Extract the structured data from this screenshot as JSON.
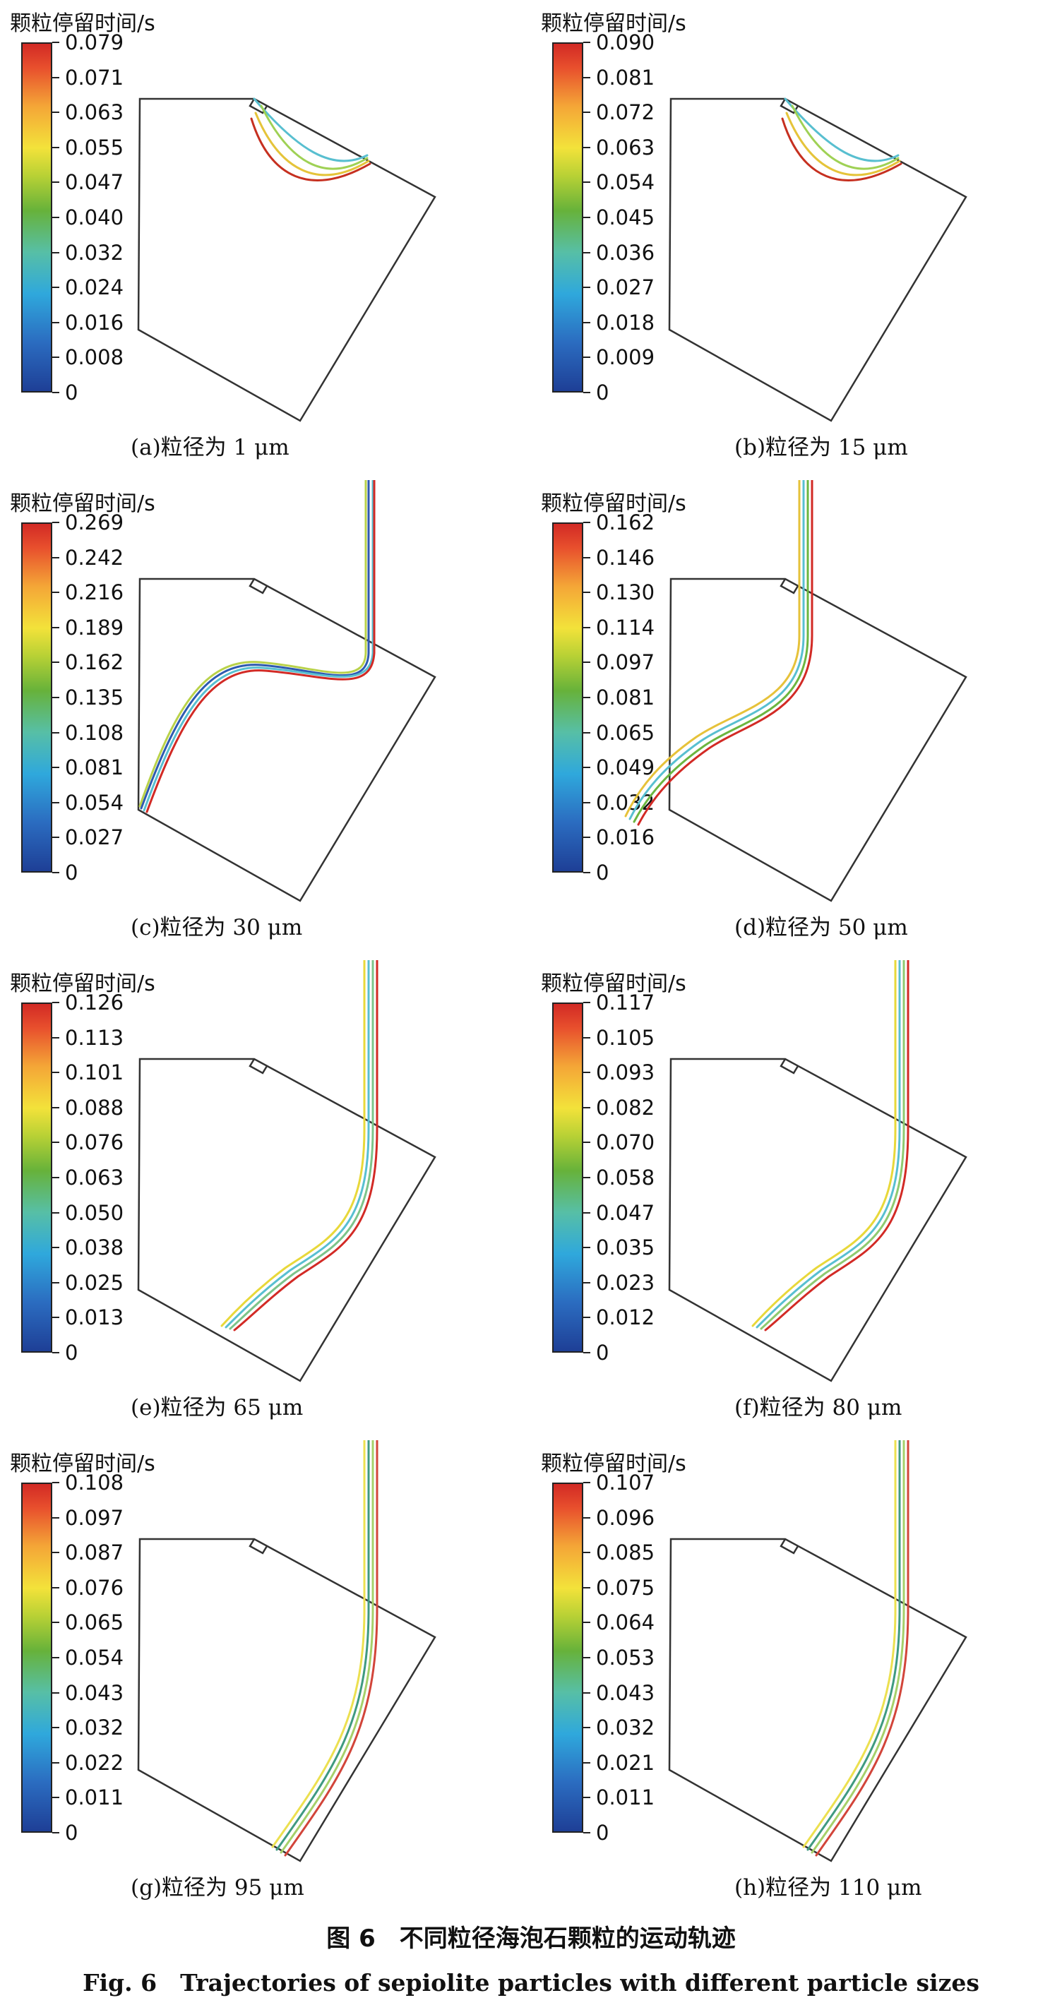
{
  "figure": {
    "title_cn": "图 6　不同粒径海泡石颗粒的运动轨迹",
    "title_en": "Fig. 6　Trajectories of sepiolite particles with different particle sizes"
  },
  "colormap": [
    "#1e3f96",
    "#2b6cc0",
    "#2fa8dc",
    "#57bfa6",
    "#67b23a",
    "#b8d135",
    "#f3e23a",
    "#f4a637",
    "#e8502d",
    "#d22a25"
  ],
  "panels": [
    {
      "id": "a",
      "caption": "(a)粒径为 1 μm",
      "colorbar_title": "颗粒停留时间/s",
      "ticks": [
        "0.079",
        "0.071",
        "0.063",
        "0.055",
        "0.047",
        "0.040",
        "0.032",
        "0.024",
        "0.016",
        "0.008",
        "0"
      ],
      "trajectory_type": "up-left to outlet",
      "trajectory_colors": [
        "#58bfd0",
        "#9fd155",
        "#e5c43a",
        "#c63020"
      ]
    },
    {
      "id": "b",
      "caption": "(b)粒径为 15 μm",
      "colorbar_title": "颗粒停留时间/s",
      "ticks": [
        "0.090",
        "0.081",
        "0.072",
        "0.063",
        "0.054",
        "0.045",
        "0.036",
        "0.027",
        "0.018",
        "0.009",
        "0"
      ],
      "trajectory_type": "up-left to outlet",
      "trajectory_colors": [
        "#58bfd0",
        "#9fd155",
        "#e5c43a",
        "#c63020"
      ]
    },
    {
      "id": "c",
      "caption": "(c)粒径为 30 μm",
      "colorbar_title": "颗粒停留时间/s",
      "ticks": [
        "0.269",
        "0.242",
        "0.216",
        "0.189",
        "0.162",
        "0.135",
        "0.108",
        "0.081",
        "0.054",
        "0.027",
        "0"
      ],
      "trajectory_type": "S-curve to left wall",
      "trajectory_colors": [
        "#2e5ab0",
        "#58bfd0",
        "#b9d24a",
        "#d22a25"
      ]
    },
    {
      "id": "d",
      "caption": "(d)粒径为 50 μm",
      "colorbar_title": "颗粒停留时间/s",
      "ticks": [
        "0.162",
        "0.146",
        "0.130",
        "0.114",
        "0.097",
        "0.081",
        "0.065",
        "0.049",
        "0.032",
        "0.016",
        "0"
      ],
      "trajectory_type": "S-curve to bottom wall",
      "trajectory_colors": [
        "#58bfd0",
        "#6cb640",
        "#e6c23a",
        "#d22a25"
      ]
    },
    {
      "id": "e",
      "caption": "(e)粒径为 65 μm",
      "colorbar_title": "颗粒停留时间/s",
      "ticks": [
        "0.126",
        "0.113",
        "0.101",
        "0.088",
        "0.076",
        "0.063",
        "0.050",
        "0.038",
        "0.025",
        "0.013",
        "0"
      ],
      "trajectory_type": "descending to bottom wall",
      "trajectory_colors": [
        "#58bfd0",
        "#7dc48a",
        "#e8d83a",
        "#d22a25"
      ]
    },
    {
      "id": "f",
      "caption": "(f)粒径为 80 μm",
      "colorbar_title": "颗粒停留时间/s",
      "ticks": [
        "0.117",
        "0.105",
        "0.093",
        "0.082",
        "0.070",
        "0.058",
        "0.047",
        "0.035",
        "0.023",
        "0.012",
        "0"
      ],
      "trajectory_type": "descending to bottom wall",
      "trajectory_colors": [
        "#58bfd0",
        "#8fca70",
        "#e8d83a",
        "#d22a25"
      ]
    },
    {
      "id": "g",
      "caption": "(g)粒径为 95 μm",
      "colorbar_title": "颗粒停留时间/s",
      "ticks": [
        "0.108",
        "0.097",
        "0.087",
        "0.076",
        "0.065",
        "0.054",
        "0.043",
        "0.032",
        "0.022",
        "0.011",
        "0"
      ],
      "trajectory_type": "steep to bottom wall",
      "trajectory_colors": [
        "#3f9a80",
        "#a6d06a",
        "#ece050",
        "#d2453a"
      ]
    },
    {
      "id": "h",
      "caption": "(h)粒径为 110 μm",
      "colorbar_title": "颗粒停留时间/s",
      "ticks": [
        "0.107",
        "0.096",
        "0.085",
        "0.075",
        "0.064",
        "0.053",
        "0.043",
        "0.032",
        "0.021",
        "0.011",
        "0"
      ],
      "trajectory_type": "steep to bottom wall",
      "trajectory_colors": [
        "#3f9a80",
        "#a6d06a",
        "#ece050",
        "#d2453a"
      ]
    }
  ]
}
